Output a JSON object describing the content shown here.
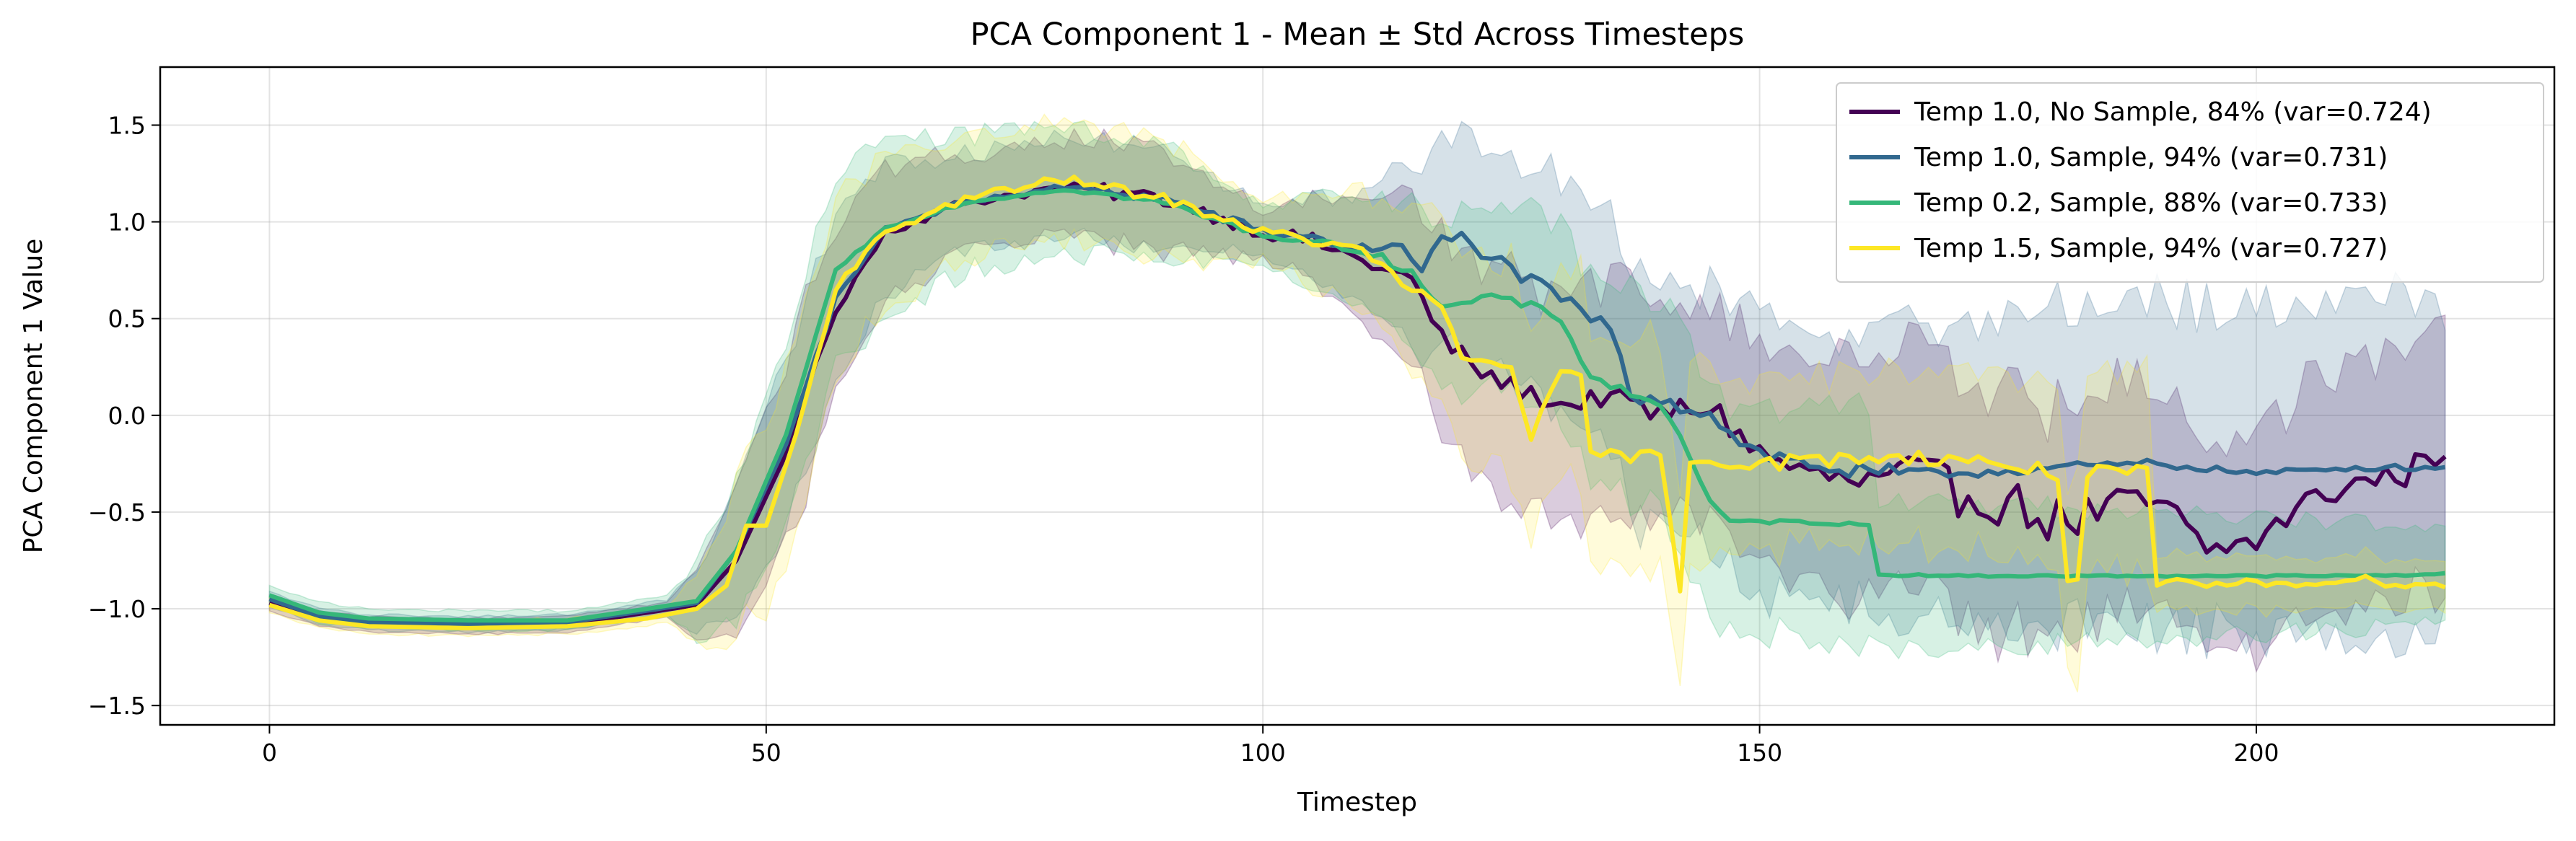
{
  "chart_data": {
    "type": "line",
    "title": "PCA Component 1 - Mean ± Std Across Timesteps",
    "xlabel": "Timestep",
    "ylabel": "PCA Component 1 Value",
    "xlim": [
      -11,
      230
    ],
    "ylim": [
      -1.6,
      1.8
    ],
    "xticks": [
      0,
      50,
      100,
      150,
      200
    ],
    "yticks": [
      -1.5,
      -1.0,
      -0.5,
      0.0,
      0.5,
      1.0,
      1.5
    ],
    "xtick_labels": [
      "0",
      "50",
      "100",
      "150",
      "200"
    ],
    "ytick_labels": [
      "−1.5",
      "−1.0",
      "−0.5",
      "0.0",
      "0.5",
      "1.0",
      "1.5"
    ],
    "grid": true,
    "legend_position": "top-right",
    "x_start": 0,
    "x_end": 219,
    "series": [
      {
        "name": "Temp 1.0, No Sample, 84% (var=0.724)",
        "color": "#440154",
        "mean_keypoints": [
          [
            0,
            -0.97
          ],
          [
            5,
            -1.05
          ],
          [
            10,
            -1.08
          ],
          [
            20,
            -1.09
          ],
          [
            30,
            -1.08
          ],
          [
            38,
            -1.02
          ],
          [
            43,
            -0.98
          ],
          [
            47,
            -0.75
          ],
          [
            52,
            -0.2
          ],
          [
            57,
            0.55
          ],
          [
            62,
            0.95
          ],
          [
            70,
            1.1
          ],
          [
            80,
            1.18
          ],
          [
            90,
            1.12
          ],
          [
            100,
            0.95
          ],
          [
            105,
            0.9
          ],
          [
            110,
            0.8
          ],
          [
            115,
            0.7
          ],
          [
            118,
            0.4
          ],
          [
            122,
            0.22
          ],
          [
            125,
            0.15
          ],
          [
            130,
            0.05
          ],
          [
            135,
            0.1
          ],
          [
            140,
            0.0
          ],
          [
            145,
            0.05
          ],
          [
            150,
            -0.2
          ],
          [
            155,
            -0.3
          ],
          [
            160,
            -0.35
          ],
          [
            165,
            -0.3
          ],
          [
            170,
            -0.4
          ],
          [
            175,
            -0.45
          ],
          [
            180,
            -0.55
          ],
          [
            185,
            -0.5
          ],
          [
            190,
            -0.45
          ],
          [
            195,
            -0.7
          ],
          [
            200,
            -0.65
          ],
          [
            205,
            -0.45
          ],
          [
            210,
            -0.35
          ],
          [
            215,
            -0.3
          ],
          [
            219,
            -0.17
          ]
        ],
        "std_keypoints": [
          [
            0,
            0.04
          ],
          [
            40,
            0.04
          ],
          [
            44,
            0.25
          ],
          [
            50,
            0.45
          ],
          [
            55,
            0.5
          ],
          [
            60,
            0.35
          ],
          [
            70,
            0.25
          ],
          [
            90,
            0.25
          ],
          [
            100,
            0.12
          ],
          [
            110,
            0.3
          ],
          [
            120,
            0.55
          ],
          [
            140,
            0.6
          ],
          [
            150,
            0.55
          ],
          [
            160,
            0.65
          ],
          [
            180,
            0.6
          ],
          [
            200,
            0.55
          ],
          [
            219,
            0.7
          ]
        ],
        "noise": [
          0,
          0,
          0.05,
          0.08,
          0.1,
          0.15,
          0.25,
          0.15
        ],
        "fill_alpha": 0.2
      },
      {
        "name": "Temp 1.0, Sample, 94% (var=0.731)",
        "color": "#31688e",
        "mean_keypoints": [
          [
            0,
            -0.95
          ],
          [
            5,
            -1.04
          ],
          [
            10,
            -1.07
          ],
          [
            20,
            -1.08
          ],
          [
            30,
            -1.07
          ],
          [
            38,
            -1.01
          ],
          [
            43,
            -0.97
          ],
          [
            47,
            -0.7
          ],
          [
            52,
            -0.15
          ],
          [
            57,
            0.6
          ],
          [
            62,
            0.97
          ],
          [
            70,
            1.1
          ],
          [
            80,
            1.18
          ],
          [
            90,
            1.12
          ],
          [
            100,
            0.95
          ],
          [
            105,
            0.92
          ],
          [
            110,
            0.85
          ],
          [
            113,
            0.9
          ],
          [
            116,
            0.75
          ],
          [
            118,
            0.9
          ],
          [
            120,
            0.92
          ],
          [
            125,
            0.75
          ],
          [
            130,
            0.6
          ],
          [
            135,
            0.45
          ],
          [
            137,
            0.1
          ],
          [
            140,
            0.1
          ],
          [
            145,
            0.0
          ],
          [
            150,
            -0.2
          ],
          [
            155,
            -0.25
          ],
          [
            160,
            -0.3
          ],
          [
            170,
            -0.3
          ],
          [
            180,
            -0.27
          ],
          [
            190,
            -0.25
          ],
          [
            200,
            -0.3
          ],
          [
            210,
            -0.27
          ],
          [
            219,
            -0.27
          ]
        ],
        "std_keypoints": [
          [
            0,
            0.04
          ],
          [
            40,
            0.04
          ],
          [
            44,
            0.2
          ],
          [
            50,
            0.4
          ],
          [
            55,
            0.45
          ],
          [
            60,
            0.35
          ],
          [
            70,
            0.25
          ],
          [
            90,
            0.25
          ],
          [
            100,
            0.12
          ],
          [
            110,
            0.3
          ],
          [
            120,
            0.55
          ],
          [
            140,
            0.65
          ],
          [
            150,
            0.7
          ],
          [
            160,
            0.7
          ],
          [
            180,
            0.85
          ],
          [
            200,
            0.85
          ],
          [
            219,
            0.85
          ]
        ],
        "noise": [
          0,
          0,
          0.03,
          0.05,
          0.08,
          0.1,
          0.05,
          0.03
        ],
        "fill_alpha": 0.2
      },
      {
        "name": "Temp 0.2, Sample, 88% (var=0.733)",
        "color": "#35b779",
        "mean_keypoints": [
          [
            0,
            -0.93
          ],
          [
            5,
            -1.02
          ],
          [
            10,
            -1.05
          ],
          [
            20,
            -1.06
          ],
          [
            30,
            -1.06
          ],
          [
            38,
            -1.0
          ],
          [
            43,
            -0.96
          ],
          [
            47,
            -0.7
          ],
          [
            52,
            -0.1
          ],
          [
            57,
            0.75
          ],
          [
            62,
            0.97
          ],
          [
            70,
            1.1
          ],
          [
            80,
            1.17
          ],
          [
            90,
            1.1
          ],
          [
            100,
            0.93
          ],
          [
            105,
            0.9
          ],
          [
            110,
            0.85
          ],
          [
            115,
            0.75
          ],
          [
            118,
            0.55
          ],
          [
            122,
            0.6
          ],
          [
            125,
            0.6
          ],
          [
            130,
            0.5
          ],
          [
            133,
            0.2
          ],
          [
            140,
            0.05
          ],
          [
            142,
            -0.1
          ],
          [
            145,
            -0.45
          ],
          [
            147,
            -0.55
          ],
          [
            150,
            -0.55
          ],
          [
            155,
            -0.55
          ],
          [
            161,
            -0.57
          ],
          [
            162,
            -0.82
          ],
          [
            170,
            -0.83
          ],
          [
            180,
            -0.83
          ],
          [
            190,
            -0.83
          ],
          [
            200,
            -0.83
          ],
          [
            210,
            -0.83
          ],
          [
            219,
            -0.82
          ]
        ],
        "std_keypoints": [
          [
            0,
            0.05
          ],
          [
            40,
            0.05
          ],
          [
            44,
            0.25
          ],
          [
            50,
            0.45
          ],
          [
            55,
            0.55
          ],
          [
            60,
            0.45
          ],
          [
            70,
            0.35
          ],
          [
            90,
            0.3
          ],
          [
            100,
            0.15
          ],
          [
            110,
            0.3
          ],
          [
            120,
            0.45
          ],
          [
            140,
            0.55
          ],
          [
            150,
            0.6
          ],
          [
            161,
            0.6
          ],
          [
            162,
            0.4
          ],
          [
            180,
            0.35
          ],
          [
            219,
            0.25
          ]
        ],
        "noise": [
          0,
          0,
          0.02,
          0.03,
          0.05,
          0.02,
          0.01,
          0.01
        ],
        "fill_alpha": 0.2
      },
      {
        "name": "Temp 1.5, Sample, 94% (var=0.727)",
        "color": "#fde725",
        "mean_keypoints": [
          [
            0,
            -0.98
          ],
          [
            5,
            -1.06
          ],
          [
            10,
            -1.09
          ],
          [
            20,
            -1.1
          ],
          [
            30,
            -1.09
          ],
          [
            38,
            -1.05
          ],
          [
            43,
            -1.0
          ],
          [
            46,
            -0.88
          ],
          [
            48,
            -0.57
          ],
          [
            50,
            -0.57
          ],
          [
            53,
            -0.1
          ],
          [
            57,
            0.65
          ],
          [
            62,
            0.95
          ],
          [
            70,
            1.12
          ],
          [
            80,
            1.22
          ],
          [
            90,
            1.12
          ],
          [
            100,
            0.95
          ],
          [
            105,
            0.9
          ],
          [
            110,
            0.85
          ],
          [
            115,
            0.65
          ],
          [
            118,
            0.55
          ],
          [
            120,
            0.3
          ],
          [
            125,
            0.25
          ],
          [
            127,
            -0.1
          ],
          [
            130,
            0.2
          ],
          [
            132,
            0.2
          ],
          [
            133,
            -0.2
          ],
          [
            140,
            -0.22
          ],
          [
            142,
            -0.9
          ],
          [
            143,
            -0.22
          ],
          [
            150,
            -0.25
          ],
          [
            160,
            -0.22
          ],
          [
            170,
            -0.22
          ],
          [
            180,
            -0.3
          ],
          [
            181,
            -0.85
          ],
          [
            182,
            -0.85
          ],
          [
            183,
            -0.3
          ],
          [
            189,
            -0.3
          ],
          [
            190,
            -0.88
          ],
          [
            200,
            -0.87
          ],
          [
            210,
            -0.85
          ],
          [
            219,
            -0.88
          ]
        ],
        "std_keypoints": [
          [
            0,
            0.04
          ],
          [
            40,
            0.04
          ],
          [
            44,
            0.25
          ],
          [
            50,
            0.5
          ],
          [
            55,
            0.5
          ],
          [
            60,
            0.4
          ],
          [
            70,
            0.3
          ],
          [
            90,
            0.3
          ],
          [
            100,
            0.15
          ],
          [
            110,
            0.3
          ],
          [
            120,
            0.55
          ],
          [
            140,
            0.6
          ],
          [
            150,
            0.45
          ],
          [
            170,
            0.45
          ],
          [
            189,
            0.55
          ],
          [
            190,
            0.15
          ],
          [
            219,
            0.12
          ]
        ],
        "noise": [
          0,
          0,
          0.05,
          0.05,
          0.06,
          0.08,
          0.08,
          0.05
        ],
        "fill_alpha": 0.17
      }
    ]
  }
}
